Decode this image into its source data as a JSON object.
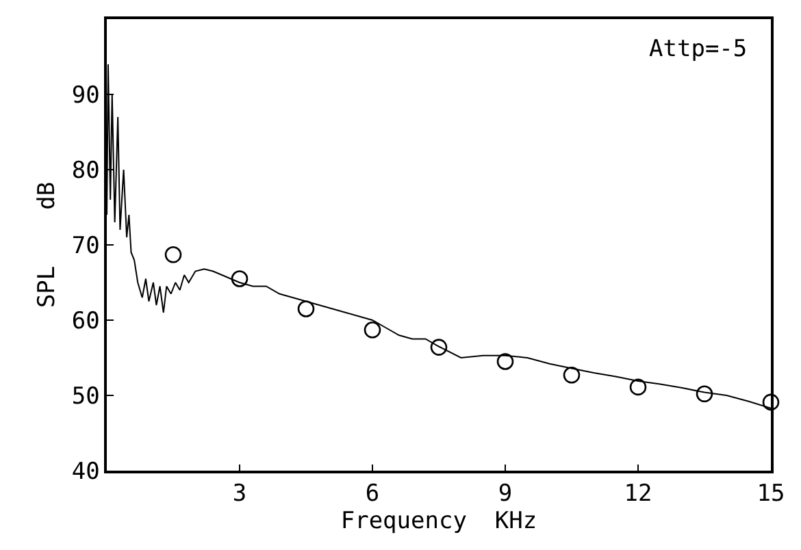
{
  "chart_data": {
    "type": "line",
    "xlabel": "Frequency  KHz",
    "ylabel": "SPL    dB",
    "annotations": [
      "Attp=-5"
    ],
    "xlim": [
      0,
      15
    ],
    "xticks": [
      3,
      6,
      9,
      12,
      15
    ],
    "ylim": [
      40,
      100
    ],
    "yticks": [
      40,
      50,
      60,
      70,
      80,
      90
    ],
    "series": [
      {
        "color": "#000000",
        "marker": "none",
        "x": [
          0.0,
          0.03,
          0.08,
          0.12,
          0.18,
          0.25,
          0.3,
          0.38,
          0.45,
          0.5,
          0.55,
          0.62,
          0.7,
          0.8,
          0.88,
          0.95,
          1.05,
          1.12,
          1.2,
          1.28,
          1.35,
          1.45,
          1.55,
          1.65,
          1.75,
          1.85,
          2.0,
          2.2,
          2.4,
          2.6,
          2.8,
          3.0,
          3.3,
          3.6,
          3.9,
          4.2,
          4.5,
          4.8,
          5.1,
          5.4,
          5.7,
          6.0,
          6.3,
          6.6,
          6.9,
          7.2,
          7.5,
          8.0,
          8.5,
          9.0,
          9.5,
          10.0,
          10.5,
          11.0,
          11.5,
          12.0,
          12.5,
          13.0,
          13.5,
          14.0,
          14.5,
          15.0
        ],
        "values": [
          74,
          94,
          76,
          90,
          73,
          87,
          72,
          80,
          71,
          74,
          69,
          68,
          65,
          63,
          65.5,
          62.5,
          65,
          62,
          64.5,
          61,
          64.5,
          63.5,
          65,
          64,
          66,
          65,
          66.5,
          66.8,
          66.5,
          66,
          65.5,
          65,
          64.5,
          64.5,
          63.5,
          63,
          62.5,
          62,
          61.5,
          61,
          60.5,
          60,
          59,
          58,
          57.5,
          57.5,
          56.5,
          55,
          55.3,
          55.3,
          55,
          54.2,
          53.6,
          53,
          52.5,
          51.9,
          51.5,
          51,
          50.4,
          50,
          49.2,
          48.3
        ]
      },
      {
        "type": "scatter",
        "color": "#000000",
        "marker": "circle",
        "x": [
          1.5,
          3,
          4.5,
          6,
          7.5,
          9,
          10.5,
          12,
          13.5,
          15
        ],
        "values": [
          68.7,
          65.5,
          61.5,
          58.7,
          56.4,
          54.5,
          52.7,
          51.1,
          50.2,
          49.1
        ]
      }
    ]
  }
}
